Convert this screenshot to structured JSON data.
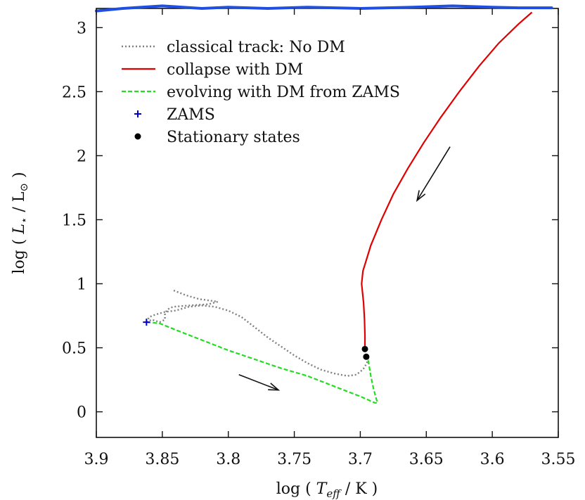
{
  "chart_data": {
    "type": "line",
    "xlabel": "log ( T_eff / K )",
    "ylabel": "log ( L⋆ / L⊙ )",
    "xlim": [
      3.9,
      3.55
    ],
    "ylim": [
      -0.2,
      3.15
    ],
    "x_reversed": true,
    "x_ticks": [
      3.9,
      3.85,
      3.8,
      3.75,
      3.7,
      3.65,
      3.6,
      3.55
    ],
    "x_tick_labels": [
      "3.9",
      "3.85",
      "3.8",
      "3.75",
      "3.7",
      "3.65",
      "3.6",
      "3.55"
    ],
    "y_ticks": [
      0,
      0.5,
      1,
      1.5,
      2,
      2.5,
      3
    ],
    "y_tick_labels": [
      "0",
      "0.5",
      "1",
      "1.5",
      "2",
      "2.5",
      "3"
    ],
    "legend_position": "top-left",
    "series": [
      {
        "name": "classical track: No DM",
        "style": "dotted",
        "color": "#808080",
        "points": [
          [
            3.862,
            0.7
          ],
          [
            3.86,
            0.74
          ],
          [
            3.855,
            0.76
          ],
          [
            3.848,
            0.78
          ],
          [
            3.84,
            0.79
          ],
          [
            3.83,
            0.82
          ],
          [
            3.82,
            0.83
          ],
          [
            3.81,
            0.82
          ],
          [
            3.8,
            0.79
          ],
          [
            3.79,
            0.74
          ],
          [
            3.78,
            0.66
          ],
          [
            3.77,
            0.58
          ],
          [
            3.76,
            0.51
          ],
          [
            3.75,
            0.44
          ],
          [
            3.74,
            0.38
          ],
          [
            3.73,
            0.33
          ],
          [
            3.72,
            0.3
          ],
          [
            3.71,
            0.28
          ],
          [
            3.703,
            0.29
          ],
          [
            3.698,
            0.33
          ],
          [
            3.695,
            0.38
          ],
          [
            3.694,
            0.42
          ]
        ]
      },
      {
        "name": "",
        "style": "dotted",
        "color": "#808080",
        "points": [
          [
            3.862,
            0.7
          ],
          [
            3.858,
            0.72
          ],
          [
            3.852,
            0.7
          ],
          [
            3.848,
            0.72
          ],
          [
            3.848,
            0.77
          ],
          [
            3.846,
            0.8
          ],
          [
            3.842,
            0.82
          ],
          [
            3.83,
            0.83
          ],
          [
            3.815,
            0.84
          ],
          [
            3.808,
            0.86
          ],
          [
            3.822,
            0.88
          ],
          [
            3.832,
            0.91
          ],
          [
            3.842,
            0.95
          ]
        ]
      },
      {
        "name": "collapse with DM",
        "style": "solid",
        "color": "#e00000",
        "points": [
          [
            3.6965,
            0.49
          ],
          [
            3.6965,
            0.6
          ],
          [
            3.6968,
            0.72
          ],
          [
            3.6975,
            0.85
          ],
          [
            3.699,
            1.0
          ],
          [
            3.698,
            1.1
          ],
          [
            3.692,
            1.3
          ],
          [
            3.684,
            1.5
          ],
          [
            3.675,
            1.7
          ],
          [
            3.664,
            1.9
          ],
          [
            3.652,
            2.1
          ],
          [
            3.639,
            2.3
          ],
          [
            3.625,
            2.5
          ],
          [
            3.61,
            2.7
          ],
          [
            3.595,
            2.88
          ],
          [
            3.58,
            3.03
          ],
          [
            3.57,
            3.12
          ]
        ]
      },
      {
        "name": "evolving with DM from ZAMS",
        "style": "dashed",
        "color": "#22dd22",
        "points": [
          [
            3.862,
            0.7
          ],
          [
            3.852,
            0.69
          ],
          [
            3.84,
            0.64
          ],
          [
            3.82,
            0.56
          ],
          [
            3.8,
            0.48
          ],
          [
            3.78,
            0.41
          ],
          [
            3.76,
            0.34
          ],
          [
            3.74,
            0.28
          ],
          [
            3.72,
            0.2
          ],
          [
            3.7,
            0.12
          ],
          [
            3.689,
            0.07
          ],
          [
            3.687,
            0.07
          ],
          [
            3.69,
            0.18
          ],
          [
            3.692,
            0.28
          ],
          [
            3.694,
            0.4
          ],
          [
            3.694,
            0.43
          ]
        ]
      },
      {
        "name": "ZAMS",
        "style": "marker-plus",
        "color": "#0000cc",
        "points": [
          [
            3.862,
            0.7
          ]
        ]
      },
      {
        "name": "Stationary states",
        "style": "marker-dot",
        "color": "#000000",
        "points": [
          [
            3.6965,
            0.49
          ],
          [
            3.6955,
            0.43
          ]
        ]
      }
    ],
    "annotations": [
      {
        "type": "arrow",
        "from": [
          3.632,
          2.07
        ],
        "to": [
          3.657,
          1.65
        ]
      },
      {
        "type": "arrow",
        "from": [
          3.792,
          0.29
        ],
        "to": [
          3.762,
          0.17
        ]
      }
    ],
    "top_band": {
      "color": "#1f4fe0",
      "points": [
        [
          3.9,
          3.13
        ],
        [
          3.88,
          3.15
        ],
        [
          3.85,
          3.17
        ],
        [
          3.82,
          3.15
        ],
        [
          3.8,
          3.16
        ],
        [
          3.77,
          3.15
        ],
        [
          3.74,
          3.16
        ],
        [
          3.7,
          3.15
        ],
        [
          3.66,
          3.16
        ],
        [
          3.63,
          3.17
        ],
        [
          3.6,
          3.16
        ],
        [
          3.58,
          3.155
        ],
        [
          3.555,
          3.155
        ]
      ]
    }
  }
}
